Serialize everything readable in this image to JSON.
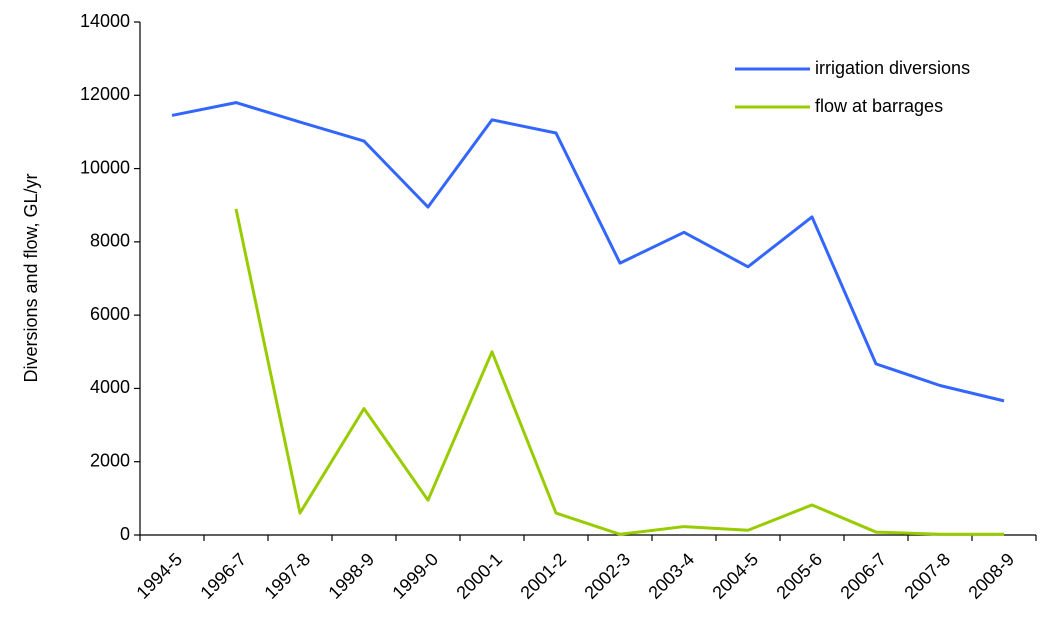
{
  "chart_data": {
    "type": "line",
    "y_label": "Diversions and flow, GL/yr",
    "categories": [
      "1994-5",
      "1996-7",
      "1997-8",
      "1998-9",
      "1999-0",
      "2000-1",
      "2001-2",
      "2002-3",
      "2003-4",
      "2004-5",
      "2005-6",
      "2006-7",
      "2007-8",
      "2008-9"
    ],
    "series": [
      {
        "name": "irrigation diversions",
        "color": "#3366ff",
        "values": [
          11450,
          11800,
          11270,
          10750,
          8950,
          11330,
          10970,
          7420,
          8260,
          7320,
          8680,
          4670,
          4080,
          3660
        ]
      },
      {
        "name": "flow at barrages",
        "color": "#99cc00",
        "values": [
          null,
          8900,
          600,
          3450,
          950,
          5000,
          600,
          20,
          230,
          130,
          820,
          80,
          20,
          20
        ]
      }
    ],
    "ylim": [
      0,
      14000
    ],
    "yticks": [
      0,
      2000,
      4000,
      6000,
      8000,
      10000,
      12000,
      14000
    ],
    "grid": false,
    "legend": "top-right"
  }
}
